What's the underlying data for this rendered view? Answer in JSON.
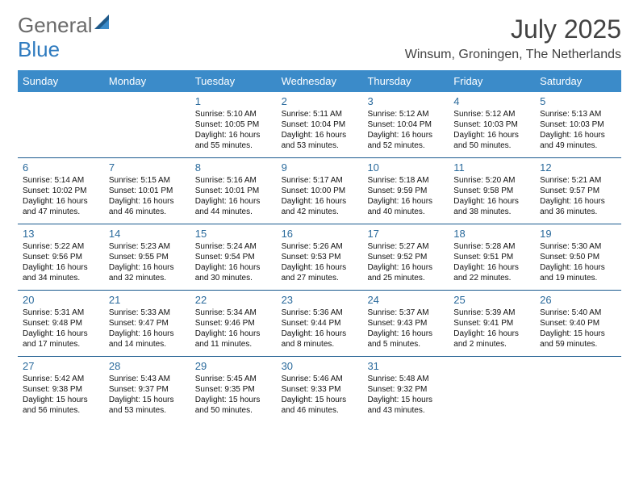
{
  "logo": {
    "text1": "General",
    "text2": "Blue",
    "color_general": "#6a6a6a",
    "color_blue": "#2f7bbf"
  },
  "title": "July 2025",
  "location": "Winsum, Groningen, The Netherlands",
  "colors": {
    "header_bg": "#3b8bc9",
    "header_text": "#ffffff",
    "week_border": "#1a5a8e",
    "daynum": "#2a6a9c",
    "title_color": "#424242",
    "body_text": "#111111",
    "background": "#ffffff"
  },
  "typography": {
    "month_title_fontsize_pt": 24,
    "location_fontsize_pt": 12,
    "dayheader_fontsize_pt": 10,
    "daynum_fontsize_pt": 10,
    "info_fontsize_pt": 7.5,
    "font_family": "Arial"
  },
  "day_headers": [
    "Sunday",
    "Monday",
    "Tuesday",
    "Wednesday",
    "Thursday",
    "Friday",
    "Saturday"
  ],
  "weeks": [
    [
      {
        "empty": true
      },
      {
        "empty": true
      },
      {
        "day": "1",
        "sunrise": "Sunrise: 5:10 AM",
        "sunset": "Sunset: 10:05 PM",
        "daylight": "Daylight: 16 hours and 55 minutes."
      },
      {
        "day": "2",
        "sunrise": "Sunrise: 5:11 AM",
        "sunset": "Sunset: 10:04 PM",
        "daylight": "Daylight: 16 hours and 53 minutes."
      },
      {
        "day": "3",
        "sunrise": "Sunrise: 5:12 AM",
        "sunset": "Sunset: 10:04 PM",
        "daylight": "Daylight: 16 hours and 52 minutes."
      },
      {
        "day": "4",
        "sunrise": "Sunrise: 5:12 AM",
        "sunset": "Sunset: 10:03 PM",
        "daylight": "Daylight: 16 hours and 50 minutes."
      },
      {
        "day": "5",
        "sunrise": "Sunrise: 5:13 AM",
        "sunset": "Sunset: 10:03 PM",
        "daylight": "Daylight: 16 hours and 49 minutes."
      }
    ],
    [
      {
        "day": "6",
        "sunrise": "Sunrise: 5:14 AM",
        "sunset": "Sunset: 10:02 PM",
        "daylight": "Daylight: 16 hours and 47 minutes."
      },
      {
        "day": "7",
        "sunrise": "Sunrise: 5:15 AM",
        "sunset": "Sunset: 10:01 PM",
        "daylight": "Daylight: 16 hours and 46 minutes."
      },
      {
        "day": "8",
        "sunrise": "Sunrise: 5:16 AM",
        "sunset": "Sunset: 10:01 PM",
        "daylight": "Daylight: 16 hours and 44 minutes."
      },
      {
        "day": "9",
        "sunrise": "Sunrise: 5:17 AM",
        "sunset": "Sunset: 10:00 PM",
        "daylight": "Daylight: 16 hours and 42 minutes."
      },
      {
        "day": "10",
        "sunrise": "Sunrise: 5:18 AM",
        "sunset": "Sunset: 9:59 PM",
        "daylight": "Daylight: 16 hours and 40 minutes."
      },
      {
        "day": "11",
        "sunrise": "Sunrise: 5:20 AM",
        "sunset": "Sunset: 9:58 PM",
        "daylight": "Daylight: 16 hours and 38 minutes."
      },
      {
        "day": "12",
        "sunrise": "Sunrise: 5:21 AM",
        "sunset": "Sunset: 9:57 PM",
        "daylight": "Daylight: 16 hours and 36 minutes."
      }
    ],
    [
      {
        "day": "13",
        "sunrise": "Sunrise: 5:22 AM",
        "sunset": "Sunset: 9:56 PM",
        "daylight": "Daylight: 16 hours and 34 minutes."
      },
      {
        "day": "14",
        "sunrise": "Sunrise: 5:23 AM",
        "sunset": "Sunset: 9:55 PM",
        "daylight": "Daylight: 16 hours and 32 minutes."
      },
      {
        "day": "15",
        "sunrise": "Sunrise: 5:24 AM",
        "sunset": "Sunset: 9:54 PM",
        "daylight": "Daylight: 16 hours and 30 minutes."
      },
      {
        "day": "16",
        "sunrise": "Sunrise: 5:26 AM",
        "sunset": "Sunset: 9:53 PM",
        "daylight": "Daylight: 16 hours and 27 minutes."
      },
      {
        "day": "17",
        "sunrise": "Sunrise: 5:27 AM",
        "sunset": "Sunset: 9:52 PM",
        "daylight": "Daylight: 16 hours and 25 minutes."
      },
      {
        "day": "18",
        "sunrise": "Sunrise: 5:28 AM",
        "sunset": "Sunset: 9:51 PM",
        "daylight": "Daylight: 16 hours and 22 minutes."
      },
      {
        "day": "19",
        "sunrise": "Sunrise: 5:30 AM",
        "sunset": "Sunset: 9:50 PM",
        "daylight": "Daylight: 16 hours and 19 minutes."
      }
    ],
    [
      {
        "day": "20",
        "sunrise": "Sunrise: 5:31 AM",
        "sunset": "Sunset: 9:48 PM",
        "daylight": "Daylight: 16 hours and 17 minutes."
      },
      {
        "day": "21",
        "sunrise": "Sunrise: 5:33 AM",
        "sunset": "Sunset: 9:47 PM",
        "daylight": "Daylight: 16 hours and 14 minutes."
      },
      {
        "day": "22",
        "sunrise": "Sunrise: 5:34 AM",
        "sunset": "Sunset: 9:46 PM",
        "daylight": "Daylight: 16 hours and 11 minutes."
      },
      {
        "day": "23",
        "sunrise": "Sunrise: 5:36 AM",
        "sunset": "Sunset: 9:44 PM",
        "daylight": "Daylight: 16 hours and 8 minutes."
      },
      {
        "day": "24",
        "sunrise": "Sunrise: 5:37 AM",
        "sunset": "Sunset: 9:43 PM",
        "daylight": "Daylight: 16 hours and 5 minutes."
      },
      {
        "day": "25",
        "sunrise": "Sunrise: 5:39 AM",
        "sunset": "Sunset: 9:41 PM",
        "daylight": "Daylight: 16 hours and 2 minutes."
      },
      {
        "day": "26",
        "sunrise": "Sunrise: 5:40 AM",
        "sunset": "Sunset: 9:40 PM",
        "daylight": "Daylight: 15 hours and 59 minutes."
      }
    ],
    [
      {
        "day": "27",
        "sunrise": "Sunrise: 5:42 AM",
        "sunset": "Sunset: 9:38 PM",
        "daylight": "Daylight: 15 hours and 56 minutes."
      },
      {
        "day": "28",
        "sunrise": "Sunrise: 5:43 AM",
        "sunset": "Sunset: 9:37 PM",
        "daylight": "Daylight: 15 hours and 53 minutes."
      },
      {
        "day": "29",
        "sunrise": "Sunrise: 5:45 AM",
        "sunset": "Sunset: 9:35 PM",
        "daylight": "Daylight: 15 hours and 50 minutes."
      },
      {
        "day": "30",
        "sunrise": "Sunrise: 5:46 AM",
        "sunset": "Sunset: 9:33 PM",
        "daylight": "Daylight: 15 hours and 46 minutes."
      },
      {
        "day": "31",
        "sunrise": "Sunrise: 5:48 AM",
        "sunset": "Sunset: 9:32 PM",
        "daylight": "Daylight: 15 hours and 43 minutes."
      },
      {
        "empty": true
      },
      {
        "empty": true
      }
    ]
  ]
}
